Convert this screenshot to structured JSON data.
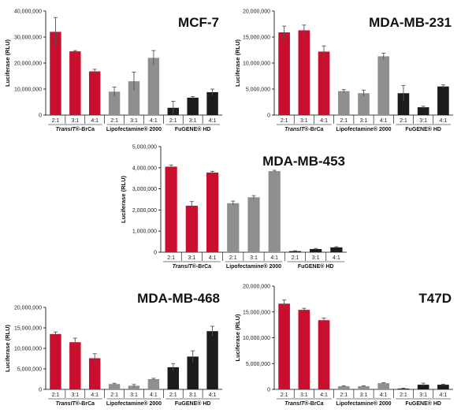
{
  "colors": {
    "transit": "#c8102e",
    "lipo": "#8f8f8f",
    "fugene": "#1c1c1c",
    "axis": "#000000",
    "err": "#555555"
  },
  "chart_data": [
    {
      "type": "bar",
      "title": "MCF-7",
      "ylabel": "Luciferase (RLU)",
      "ylim": [
        0,
        40000000
      ],
      "yticks": [
        "0",
        "10,000,000",
        "20,000,000",
        "30,000,000",
        "40,000,000"
      ],
      "ytick_values": [
        0,
        10000000,
        20000000,
        30000000,
        40000000
      ],
      "categories": [
        "2:1",
        "3:1",
        "4:1",
        "2:1",
        "3:1",
        "4:1",
        "2:1",
        "3:1",
        "4:1"
      ],
      "groups": [
        {
          "name": "TransIT®-BrCa",
          "name_prefix": "TransIT",
          "name_suffix": "®-BrCa",
          "color_key": "transit",
          "values": [
            32000000,
            24500000,
            16800000
          ],
          "errors": [
            5500000,
            300000,
            800000
          ]
        },
        {
          "name": "Lipofectamine® 2000",
          "color_key": "lipo",
          "values": [
            9000000,
            13000000,
            22000000
          ],
          "errors": [
            1800000,
            3500000,
            2800000
          ]
        },
        {
          "name": "FuGENE® HD",
          "color_key": "fugene",
          "values": [
            2800000,
            6700000,
            8800000
          ],
          "errors": [
            2500000,
            400000,
            1200000
          ]
        }
      ]
    },
    {
      "type": "bar",
      "title": "MDA-MB-231",
      "ylabel": "Luciferase (RLU)",
      "ylim": [
        0,
        20000000
      ],
      "yticks": [
        "0",
        "5,000,000",
        "10,000,000",
        "15,000,000",
        "20,000,000"
      ],
      "ytick_values": [
        0,
        5000000,
        10000000,
        15000000,
        20000000
      ],
      "categories": [
        "2:1",
        "3:1",
        "4:1",
        "2:1",
        "3:1",
        "4:1",
        "2:1",
        "3:1",
        "4:1"
      ],
      "groups": [
        {
          "name": "TransIT®-BrCa",
          "name_prefix": "TransIT",
          "name_suffix": "®-BrCa",
          "color_key": "transit",
          "values": [
            15900000,
            16300000,
            12200000
          ],
          "errors": [
            1200000,
            1000000,
            1100000
          ]
        },
        {
          "name": "Lipofectamine® 2000",
          "color_key": "lipo",
          "values": [
            4600000,
            4200000,
            11300000
          ],
          "errors": [
            300000,
            600000,
            600000
          ]
        },
        {
          "name": "FuGENE® HD",
          "color_key": "fugene",
          "values": [
            4200000,
            1500000,
            5500000
          ],
          "errors": [
            1500000,
            200000,
            300000
          ]
        }
      ]
    },
    {
      "type": "bar",
      "title": "MDA-MB-453",
      "ylabel": "Luciferase (RLU)",
      "ylim": [
        0,
        5000000
      ],
      "yticks": [
        "0",
        "1,000,000",
        "2,000,000",
        "3,000,000",
        "4,000,000",
        "5,000,000"
      ],
      "ytick_values": [
        0,
        1000000,
        2000000,
        3000000,
        4000000,
        5000000
      ],
      "categories": [
        "2:1",
        "3:1",
        "4:1",
        "2:1",
        "3:1",
        "4:1",
        "2:1",
        "3:1",
        "4:1"
      ],
      "groups": [
        {
          "name": "TransIT®-BrCa",
          "name_prefix": "TransIT",
          "name_suffix": "®-BrCa",
          "color_key": "transit",
          "values": [
            4050000,
            2200000,
            3770000
          ],
          "errors": [
            80000,
            200000,
            60000
          ]
        },
        {
          "name": "Lipofectamine® 2000",
          "color_key": "lipo",
          "values": [
            2320000,
            2600000,
            3840000
          ],
          "errors": [
            100000,
            80000,
            40000
          ]
        },
        {
          "name": "FuGENE® HD",
          "color_key": "fugene",
          "values": [
            50000,
            150000,
            230000
          ],
          "errors": [
            20000,
            30000,
            30000
          ]
        }
      ]
    },
    {
      "type": "bar",
      "title": "MDA-MB-468",
      "ylabel": "Luciferase (RLU)",
      "ylim": [
        0,
        20000000
      ],
      "yticks": [
        "0",
        "5,000,000",
        "10,000,000",
        "15,000,000",
        "20,000,000"
      ],
      "ytick_values": [
        0,
        5000000,
        10000000,
        15000000,
        20000000
      ],
      "categories": [
        "2:1",
        "3:1",
        "4:1",
        "2:1",
        "3:1",
        "4:1",
        "2:1",
        "3:1",
        "4:1"
      ],
      "groups": [
        {
          "name": "TransIT®-BrCa",
          "name_prefix": "TransIT",
          "name_suffix": "®-BrCa",
          "color_key": "transit",
          "values": [
            13500000,
            11500000,
            7600000
          ],
          "errors": [
            500000,
            1000000,
            1100000
          ]
        },
        {
          "name": "Lipofectamine® 2000",
          "color_key": "lipo",
          "values": [
            1300000,
            900000,
            2500000
          ],
          "errors": [
            200000,
            300000,
            200000
          ]
        },
        {
          "name": "FuGENE® HD",
          "color_key": "fugene",
          "values": [
            5400000,
            8000000,
            14200000
          ],
          "errors": [
            900000,
            1400000,
            1200000
          ]
        }
      ]
    },
    {
      "type": "bar",
      "title": "T47D",
      "ylabel": "Luciferase (RLU)",
      "ylim": [
        0,
        20000000
      ],
      "yticks": [
        "0",
        "5,000,000",
        "10,000,000",
        "15,000,000",
        "20,000,000"
      ],
      "ytick_values": [
        0,
        5000000,
        10000000,
        15000000,
        20000000
      ],
      "categories": [
        "2:1",
        "3:1",
        "4:1",
        "2:1",
        "3:1",
        "4:1",
        "2:1",
        "3:1",
        "4:1"
      ],
      "groups": [
        {
          "name": "TransIT®-BrCa",
          "name_prefix": "TransIT",
          "name_suffix": "®-BrCa",
          "color_key": "transit",
          "values": [
            16600000,
            15400000,
            13400000
          ],
          "errors": [
            700000,
            300000,
            400000
          ]
        },
        {
          "name": "Lipofectamine® 2000",
          "color_key": "lipo",
          "values": [
            600000,
            600000,
            1200000
          ],
          "errors": [
            100000,
            100000,
            100000
          ]
        },
        {
          "name": "FuGENE® HD",
          "color_key": "fugene",
          "values": [
            150000,
            900000,
            900000
          ],
          "errors": [
            100000,
            300000,
            100000
          ]
        }
      ]
    }
  ]
}
